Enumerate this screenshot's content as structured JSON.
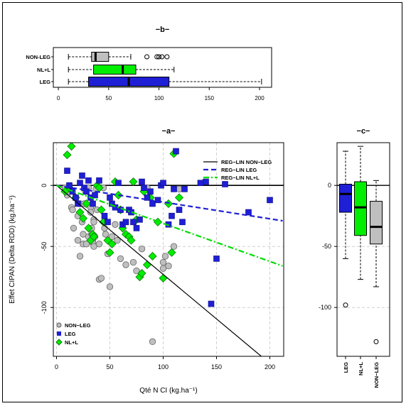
{
  "chart_data": [
    {
      "panel": "b",
      "type": "boxplot",
      "title": "−b−",
      "orientation": "horizontal",
      "xlim": [
        -5,
        212
      ],
      "xticks": [
        "0",
        "50",
        "100",
        "150",
        "200"
      ],
      "xtick_values": [
        0,
        50,
        100,
        150,
        200
      ],
      "series": [
        {
          "name": "NON-LEG",
          "color": "#c0c0c0",
          "whisker_low": 10,
          "q1": 33,
          "median": 37,
          "q3": 50,
          "whisker_high": 72,
          "outliers": [
            88,
            98,
            100,
            103,
            108
          ]
        },
        {
          "name": "NL+L",
          "color": "#00ee00",
          "whisker_low": 10,
          "q1": 35,
          "median": 64,
          "q3": 77,
          "whisker_high": 115,
          "outliers": []
        },
        {
          "name": "LEG",
          "color": "#1f1fd6",
          "whisker_low": 10,
          "q1": 30,
          "median": 70,
          "q3": 110,
          "whisker_high": 202,
          "outliers": []
        }
      ]
    },
    {
      "panel": "a",
      "type": "scatter",
      "title": "−a−",
      "xlabel": "Qté N CI (kg.ha⁻¹)",
      "ylabel": "Effet CIPAN (Delta RDD) (kg.ha⁻¹)",
      "xlim": [
        -3,
        213
      ],
      "ylim": [
        -140,
        35
      ],
      "xticks": [
        "0",
        "50",
        "100",
        "150",
        "200"
      ],
      "xtick_values": [
        0,
        50,
        100,
        150,
        200
      ],
      "yticks": [
        "-100",
        "-50",
        "0"
      ],
      "ytick_values": [
        -100,
        -50,
        0
      ],
      "grid": true,
      "legend_top_right": [
        {
          "label": "REG−LIN NON−LEG",
          "color": "#000000",
          "dash": "solid"
        },
        {
          "label": "REG−LIN LEG",
          "color": "#1f1fd6",
          "dash": "dashed"
        },
        {
          "label": "REG−LIN NL+L",
          "color": "#00dd00",
          "dash": "dashdot"
        }
      ],
      "legend_bottom_left": [
        {
          "label": "NON−LEG",
          "color": "#bfbfbf",
          "marker": "circle"
        },
        {
          "label": "LEG",
          "color": "#1f1fd6",
          "marker": "square"
        },
        {
          "label": "NL+L",
          "color": "#00ee00",
          "marker": "diamond"
        }
      ],
      "regression_lines": [
        {
          "name": "REG-LIN NON-LEG",
          "color": "#000000",
          "dash": "solid",
          "x": [
            0,
            192
          ],
          "y": [
            0,
            -140
          ]
        },
        {
          "name": "REG-LIN LEG",
          "color": "#1f1fd6",
          "dash": "dashed",
          "x": [
            0,
            212
          ],
          "y": [
            0,
            -29
          ]
        },
        {
          "name": "REG-LIN NL+L",
          "color": "#00dd00",
          "dash": "dashdot",
          "x": [
            0,
            212
          ],
          "y": [
            0,
            -66
          ]
        }
      ],
      "series": [
        {
          "name": "NON-LEG",
          "marker": "circle",
          "color": "#bfbfbf",
          "points": [
            [
              8,
              -2
            ],
            [
              10,
              -8
            ],
            [
              12,
              -5
            ],
            [
              14,
              -18
            ],
            [
              15,
              -20
            ],
            [
              16,
              -35
            ],
            [
              18,
              -10
            ],
            [
              20,
              -25
            ],
            [
              20,
              -45
            ],
            [
              22,
              -15
            ],
            [
              22,
              -58
            ],
            [
              24,
              -30
            ],
            [
              25,
              -40
            ],
            [
              25,
              -48
            ],
            [
              26,
              -15
            ],
            [
              27,
              -5
            ],
            [
              28,
              -48
            ],
            [
              30,
              -2
            ],
            [
              30,
              -42
            ],
            [
              32,
              -18
            ],
            [
              32,
              -22
            ],
            [
              33,
              -35
            ],
            [
              33,
              -40
            ],
            [
              34,
              -45
            ],
            [
              34,
              -47
            ],
            [
              35,
              -28
            ],
            [
              35,
              -30
            ],
            [
              35,
              -50
            ],
            [
              36,
              -42
            ],
            [
              37,
              -3
            ],
            [
              38,
              -20
            ],
            [
              40,
              -48
            ],
            [
              40,
              -77
            ],
            [
              42,
              -76
            ],
            [
              44,
              -2
            ],
            [
              45,
              -35
            ],
            [
              46,
              -40
            ],
            [
              48,
              -56
            ],
            [
              50,
              -83
            ],
            [
              52,
              -42
            ],
            [
              55,
              -32
            ],
            [
              57,
              -45
            ],
            [
              60,
              -60
            ],
            [
              65,
              -65
            ],
            [
              72,
              -63
            ],
            [
              75,
              -70
            ],
            [
              80,
              -52
            ],
            [
              85,
              -2
            ],
            [
              90,
              -128
            ],
            [
              100,
              -63
            ],
            [
              100,
              -68
            ],
            [
              102,
              -58
            ],
            [
              105,
              -66
            ],
            [
              110,
              -50
            ],
            [
              115,
              -3
            ]
          ]
        },
        {
          "name": "LEG",
          "marker": "square",
          "color": "#1f1fd6",
          "points": [
            [
              10,
              12
            ],
            [
              12,
              0
            ],
            [
              15,
              -5
            ],
            [
              18,
              -10
            ],
            [
              20,
              -15
            ],
            [
              22,
              2
            ],
            [
              24,
              8
            ],
            [
              26,
              -2
            ],
            [
              28,
              -5
            ],
            [
              30,
              4
            ],
            [
              32,
              -10
            ],
            [
              34,
              -15
            ],
            [
              36,
              -8
            ],
            [
              40,
              4
            ],
            [
              45,
              -25
            ],
            [
              48,
              -30
            ],
            [
              50,
              -10
            ],
            [
              52,
              -15
            ],
            [
              55,
              -18
            ],
            [
              58,
              2
            ],
            [
              60,
              -20
            ],
            [
              62,
              -32
            ],
            [
              65,
              -30
            ],
            [
              68,
              -20
            ],
            [
              70,
              -22
            ],
            [
              72,
              -30
            ],
            [
              75,
              -35
            ],
            [
              78,
              -28
            ],
            [
              80,
              3
            ],
            [
              82,
              -2
            ],
            [
              85,
              -10
            ],
            [
              88,
              -5
            ],
            [
              90,
              -15
            ],
            [
              95,
              -12
            ],
            [
              98,
              0
            ],
            [
              100,
              2
            ],
            [
              105,
              -32
            ],
            [
              108,
              -25
            ],
            [
              110,
              -3
            ],
            [
              115,
              -20
            ],
            [
              118,
              -30
            ],
            [
              120,
              -3
            ],
            [
              135,
              2
            ],
            [
              140,
              3
            ],
            [
              145,
              -97
            ],
            [
              150,
              -60
            ],
            [
              158,
              1
            ],
            [
              180,
              -22
            ],
            [
              200,
              -12
            ],
            [
              112,
              28
            ]
          ]
        },
        {
          "name": "NL+L",
          "marker": "diamond",
          "color": "#00ee00",
          "points": [
            [
              8,
              -5
            ],
            [
              10,
              25
            ],
            [
              12,
              -2
            ],
            [
              14,
              32
            ],
            [
              18,
              -10
            ],
            [
              22,
              -22
            ],
            [
              25,
              -27
            ],
            [
              28,
              -15
            ],
            [
              30,
              -35
            ],
            [
              32,
              -45
            ],
            [
              34,
              -40
            ],
            [
              35,
              -42
            ],
            [
              38,
              0
            ],
            [
              40,
              -2
            ],
            [
              42,
              -20
            ],
            [
              44,
              -30
            ],
            [
              48,
              -45
            ],
            [
              50,
              -55
            ],
            [
              52,
              -48
            ],
            [
              55,
              3
            ],
            [
              58,
              -8
            ],
            [
              60,
              -20
            ],
            [
              62,
              -35
            ],
            [
              65,
              -40
            ],
            [
              68,
              -42
            ],
            [
              70,
              -45
            ],
            [
              72,
              3
            ],
            [
              75,
              -28
            ],
            [
              78,
              -75
            ],
            [
              80,
              -72
            ],
            [
              82,
              -5
            ],
            [
              85,
              -65
            ],
            [
              88,
              -10
            ],
            [
              90,
              -58
            ],
            [
              95,
              -30
            ],
            [
              100,
              -76
            ],
            [
              105,
              -15
            ],
            [
              108,
              -55
            ],
            [
              110,
              26
            ],
            [
              115,
              -10
            ]
          ]
        }
      ]
    },
    {
      "panel": "c",
      "type": "boxplot",
      "title": "−c−",
      "orientation": "vertical",
      "ylim": [
        -140,
        35
      ],
      "yticks": [
        "-100",
        "-50",
        "0"
      ],
      "ytick_values": [
        -100,
        -50,
        0
      ],
      "series": [
        {
          "name": "LEG",
          "color": "#1f1fd6",
          "whisker_low": -60,
          "q1": -22,
          "median": -7,
          "q3": 1,
          "whisker_high": 28,
          "outliers": [
            -98
          ]
        },
        {
          "name": "NL+L",
          "color": "#00ee00",
          "whisker_low": -77,
          "q1": -41,
          "median": -18,
          "q3": 3,
          "whisker_high": 32,
          "outliers": []
        },
        {
          "name": "NON−LEG",
          "color": "#bfbfbf",
          "whisker_low": -83,
          "q1": -48,
          "median": -34,
          "q3": -13,
          "whisker_high": 4,
          "outliers": [
            -128
          ]
        }
      ]
    }
  ]
}
